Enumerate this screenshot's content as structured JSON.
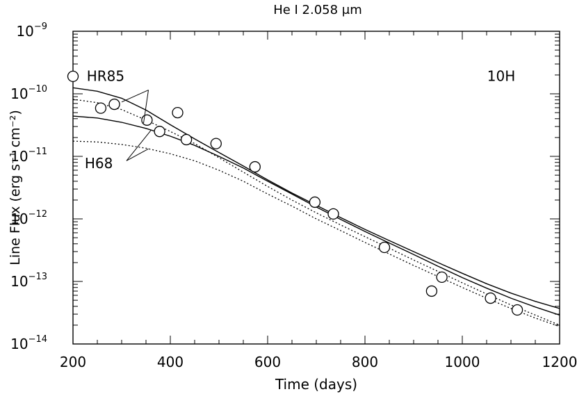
{
  "chart_data": {
    "type": "line",
    "title": "He I 2.058 μm",
    "xlabel": "Time (days)",
    "ylabel": "Line Flux (erg s⁻¹ cm⁻²)",
    "xlim": [
      200,
      1200
    ],
    "ylim_exponent": [
      -14,
      -9
    ],
    "y_scale": "log",
    "x_ticks": [
      "200",
      "400",
      "600",
      "800",
      "1000",
      "1200"
    ],
    "y_ticks": [
      {
        "base": "10",
        "exp": "−14"
      },
      {
        "base": "10",
        "exp": "−13"
      },
      {
        "base": "10",
        "exp": "−12"
      },
      {
        "base": "10",
        "exp": "−11"
      },
      {
        "base": "10",
        "exp": "−10"
      },
      {
        "base": "10",
        "exp": "−9"
      }
    ],
    "annotations": [
      {
        "text": "10H",
        "x": 1080,
        "y": 1.6e-10
      },
      {
        "text": "HR85",
        "x": 267,
        "y": 1.6e-10
      },
      {
        "text": "H68",
        "x": 253,
        "y": 6.5e-12
      }
    ],
    "observations": {
      "x": [
        200,
        257,
        285,
        352,
        378,
        415,
        433,
        494,
        574,
        697,
        735,
        840,
        937,
        958,
        1058,
        1113
      ],
      "y": [
        1.9e-10,
        5.9e-11,
        6.8e-11,
        3.8e-11,
        2.5e-11,
        5e-11,
        1.85e-11,
        1.6e-11,
        6.8e-12,
        1.85e-12,
        1.2e-12,
        3.5e-13,
        7e-14,
        1.17e-13,
        5.4e-14,
        3.5e-14
      ]
    },
    "series": [
      {
        "style": "solid",
        "model": "HR85",
        "x": [
          200,
          250,
          300,
          350,
          400,
          450,
          500,
          550,
          600,
          650,
          700,
          750,
          800,
          850,
          900,
          950,
          1000,
          1050,
          1100,
          1150,
          1200
        ],
        "y": [
          1.25e-10,
          1.1e-10,
          8.5e-11,
          5.5e-11,
          3.2e-11,
          1.9e-11,
          1.15e-11,
          7e-12,
          4.2e-12,
          2.6e-12,
          1.65e-12,
          1.05e-12,
          6.8e-13,
          4.5e-13,
          3e-13,
          2e-13,
          1.35e-13,
          9.2e-14,
          6.5e-14,
          4.8e-14,
          3.7e-14
        ]
      },
      {
        "style": "dotted",
        "model": "HR85",
        "x": [
          200,
          250,
          300,
          350,
          400,
          450,
          500,
          550,
          600,
          650,
          700,
          750,
          800,
          850,
          900,
          950,
          1000,
          1050,
          1100,
          1150,
          1200
        ],
        "y": [
          8.2e-11,
          7.2e-11,
          5.6e-11,
          3.8e-11,
          2.5e-11,
          1.6e-11,
          9.5e-12,
          5.6e-12,
          3.3e-12,
          2e-12,
          1.25e-12,
          8e-13,
          5.2e-13,
          3.4e-13,
          2.2e-13,
          1.45e-13,
          9.5e-14,
          6.3e-14,
          4.2e-14,
          2.9e-14,
          2e-14
        ]
      },
      {
        "style": "solid",
        "model": "H68",
        "x": [
          200,
          250,
          300,
          350,
          400,
          450,
          500,
          550,
          600,
          650,
          700,
          750,
          800,
          850,
          900,
          950,
          1000,
          1050,
          1100,
          1150,
          1200
        ],
        "y": [
          4.4e-11,
          4.1e-11,
          3.5e-11,
          2.8e-11,
          2.1e-11,
          1.5e-11,
          1e-11,
          6.5e-12,
          4e-12,
          2.5e-12,
          1.55e-12,
          9.8e-13,
          6.3e-13,
          4.1e-13,
          2.7e-13,
          1.75e-13,
          1.15e-13,
          7.8e-14,
          5.4e-14,
          3.9e-14,
          2.9e-14
        ]
      },
      {
        "style": "dotted",
        "model": "H68",
        "x": [
          200,
          250,
          300,
          350,
          400,
          450,
          500,
          550,
          600,
          650,
          700,
          750,
          800,
          850,
          900,
          950,
          1000,
          1050,
          1100,
          1150,
          1200
        ],
        "y": [
          1.75e-11,
          1.7e-11,
          1.55e-11,
          1.35e-11,
          1.1e-11,
          8.5e-12,
          6e-12,
          4e-12,
          2.5e-12,
          1.6e-12,
          1e-12,
          6.5e-13,
          4.2e-13,
          2.75e-13,
          1.8e-13,
          1.2e-13,
          8e-14,
          5.4e-14,
          3.7e-14,
          2.6e-14,
          1.9e-14
        ]
      }
    ],
    "grid": false,
    "legend": "none"
  }
}
